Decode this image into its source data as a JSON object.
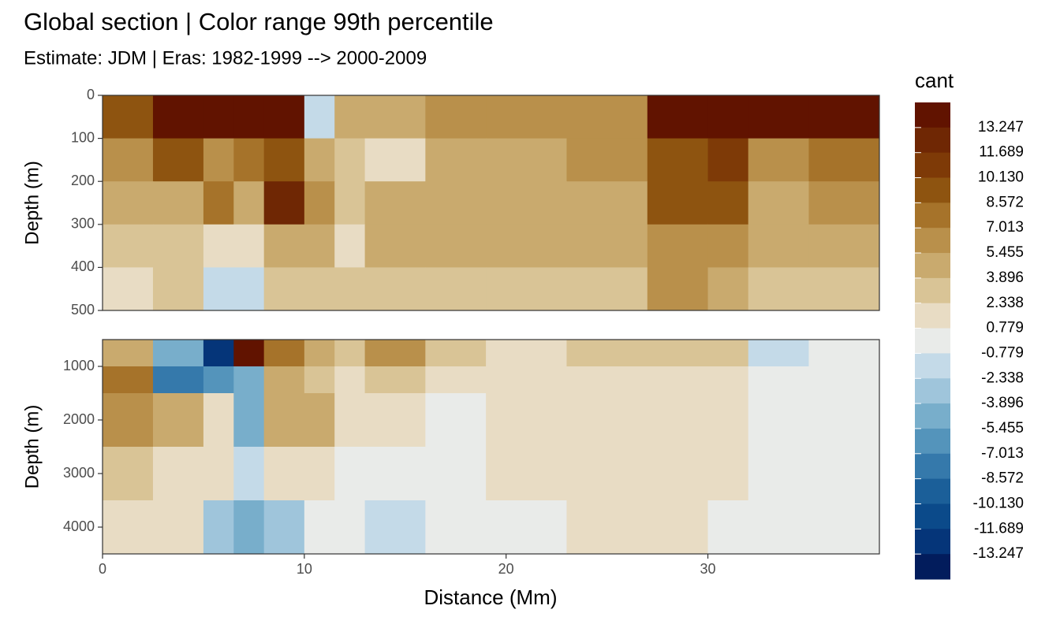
{
  "title": "Global section | Color range 99th percentile",
  "subtitle": "Estimate: JDM  | Eras: 1982-1999 --> 2000-2009",
  "xlabel": "Distance (Mm)",
  "xlim": [
    0,
    38.5
  ],
  "xticks": [
    0,
    10,
    20,
    30
  ],
  "legend": {
    "title": "cant",
    "breaks": [
      13.247,
      11.689,
      10.13,
      8.572,
      7.013,
      5.455,
      3.896,
      2.338,
      0.779,
      -0.779,
      -2.338,
      -3.896,
      -5.455,
      -7.013,
      -8.572,
      -10.13,
      -11.689,
      -13.247
    ],
    "labels": [
      "13.247",
      "11.689",
      "10.130",
      "8.572",
      "7.013",
      "5.455",
      "3.896",
      "2.338",
      "0.779",
      "-0.779",
      "-2.338",
      "-3.896",
      "-5.455",
      "-7.013",
      "-8.572",
      "-10.130",
      "-11.689",
      "-13.247"
    ],
    "colors": [
      "#611300",
      "#6f2704",
      "#7e3a07",
      "#8e5410",
      "#a6732a",
      "#b9904b",
      "#c9aa6e",
      "#d9c496",
      "#e8dcc4",
      "#e9ebe9",
      "#c4dae8",
      "#9fc5db",
      "#78aecb",
      "#5494bb",
      "#3579ab",
      "#1b5f99",
      "#0b4a8a",
      "#053579",
      "#021c5c"
    ]
  },
  "chart_data": [
    {
      "type": "heatmap",
      "ylabel": "Depth (m)",
      "ylim": [
        0,
        500
      ],
      "yticks": [
        0,
        100,
        200,
        300,
        400,
        500
      ],
      "x": [
        0,
        2.5,
        5,
        6.5,
        8,
        10,
        11.5,
        13,
        16,
        19,
        23,
        27,
        30,
        32,
        35,
        38.5
      ],
      "y": [
        0,
        100,
        200,
        300,
        400,
        500
      ],
      "z": [
        [
          9,
          14,
          14,
          14,
          14,
          -2,
          5,
          5,
          6,
          6,
          7,
          14,
          14,
          14,
          14
        ],
        [
          7,
          9,
          6,
          8,
          10,
          4,
          3,
          2,
          5,
          5,
          6,
          10,
          11,
          7,
          8
        ],
        [
          5,
          4,
          8,
          4,
          12,
          6,
          3,
          4,
          5,
          4,
          5,
          9,
          9,
          5,
          6
        ],
        [
          3,
          3,
          2,
          1,
          5,
          5,
          2,
          4,
          4,
          4,
          4,
          7,
          7,
          4,
          4
        ],
        [
          2,
          3,
          -1,
          -1,
          3,
          3,
          3,
          3,
          3,
          3,
          3,
          6,
          5,
          3,
          3
        ]
      ]
    },
    {
      "type": "heatmap",
      "ylabel": "Depth (m)",
      "ylim": [
        500,
        4500
      ],
      "yticks": [
        1000,
        2000,
        3000,
        4000
      ],
      "x": [
        0,
        2.5,
        5,
        6.5,
        8,
        10,
        11.5,
        13,
        16,
        19,
        23,
        27,
        30,
        32,
        35,
        38.5
      ],
      "y": [
        500,
        1000,
        1500,
        2500,
        3500,
        4500
      ],
      "z": [
        [
          5,
          -5,
          -12,
          14,
          8,
          4,
          3,
          6,
          3,
          2,
          3,
          3,
          3,
          -1,
          0
        ],
        [
          8,
          -8,
          -6,
          -5,
          5,
          3,
          2,
          3,
          2,
          2,
          2,
          2,
          1,
          0,
          0
        ],
        [
          6,
          4,
          2,
          -4,
          4,
          4,
          1,
          2,
          0,
          1,
          2,
          1,
          1,
          0,
          0
        ],
        [
          3,
          2,
          1,
          -1,
          2,
          1,
          0,
          0,
          0,
          1,
          1,
          1,
          1,
          0,
          0
        ],
        [
          2,
          1,
          -3,
          -5,
          -3,
          0,
          0,
          -1,
          0,
          0,
          1,
          1,
          0,
          0,
          0
        ]
      ]
    }
  ]
}
